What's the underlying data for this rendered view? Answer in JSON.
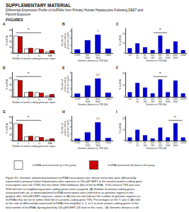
{
  "title": "SUPPLEMENTARY MATERIAL",
  "subtitle": "Differential Expression Profile of lncRNAs from Primary Human Hepatocytes Following DEET and\nFipronil Exposure",
  "annotations": [
    {
      "text": "FIGURES"
    }
  ],
  "caption": "Figure S1. Genomic relationship between lncRNA transcription sites whose transcripts were differentially\nexpressed in primary human hepatocytes after exposure to 100 μM DEET to the nearest protein-coding gene\ntranscription start site (TSS) that lies within 3000 kilobases (kb) of the lncRNA.  If the nearest TSS was over\n3000 kb then no neighboring protein-coding genes were assigned. (A) Number of protein-coding genes\nassociated with up- or downregulated lncRNA transcription sites (referred to as genomic regions in the\ngraphs) after 100 μM DEET exposure: values in (A) that are red indicate the number of genomic regions (i.e.,\nlncRNAs) that do not lie within 3000 kb of a protein-coding gene TSS. Percentages on the Y axis in (A) refer\nto the ratio of differentially expressed lncRNAs that neighbor 0, 1, or 2 or more protein-coding genes to the\ntotal number of lncRNAs dysregulated by 100 μM DEET (26 total in this case).  (B) Genomic distance in kb",
  "chart_data": [
    {
      "type": "bar",
      "title": "A",
      "categories": [
        "0",
        "1",
        "2+",
        "N/A"
      ],
      "series": [
        {
          "name": "lncRNA associated with up in this group",
          "color": "#ffffff",
          "values": [
            60,
            15,
            15,
            5
          ]
        },
        {
          "name": "lncRNA associated with down in this group",
          "color": "#cc0000",
          "values": [
            58,
            17,
            13,
            9
          ]
        }
      ],
      "xlabel": "Number of protein-coding genes per region",
      "ylabel": "% lncRNA",
      "ylim": [
        0,
        87
      ],
      "yticks": [
        0,
        20,
        40,
        60,
        80
      ],
      "grid": false,
      "legend": "bottom",
      "annotations": [
        {
          "text": "*",
          "x": 1
        }
      ]
    },
    {
      "type": "bar",
      "title": "B",
      "categories": [
        "0-500",
        "500-\n1500",
        "1500-\n3000",
        ">3000"
      ],
      "values": [
        1.0,
        3.5,
        5.0,
        1.2
      ],
      "value_labels": [
        null,
        null,
        "5",
        null
      ],
      "color": "#0000cc",
      "xlabel": "Genomic distance to TSS (kb)",
      "ylabel": "Number of\nprotein-coding\ngenes per region",
      "ylim": [
        0,
        6.75
      ],
      "yticks": [
        0,
        2,
        4,
        6
      ],
      "grid": false
    },
    {
      "type": "bar",
      "title": "C",
      "categories": [
        "<10",
        "10-\n50",
        "50-\n100",
        "100-\n200",
        "200-\n500",
        "500-\n1000",
        "1000-\n2000",
        ">2000"
      ],
      "values": [
        5,
        10,
        6,
        3,
        18,
        4,
        12,
        3
      ],
      "color": "#0000cc",
      "xlabel": "Distance to TSS (kb)",
      "ylabel": "% lncRNA",
      "ylim": [
        0,
        25.56
      ],
      "yticks": [
        0,
        10,
        20
      ],
      "grid": false,
      "annotations": [
        {
          "text": "*",
          "x": 4
        }
      ]
    },
    {
      "type": "bar",
      "title": "D",
      "categories": [
        "0",
        "1",
        "2+",
        "N/A"
      ],
      "series": [
        {
          "color": "#ffffff",
          "values": [
            55,
            14,
            14,
            4
          ]
        },
        {
          "color": "#cc0000",
          "values": [
            53,
            16,
            12,
            8
          ]
        }
      ],
      "xlabel": "Number of protein-coding genes per region",
      "ylabel": "% lncRNA",
      "ylim": [
        0,
        79.75
      ],
      "yticks": [
        0,
        20,
        40,
        60
      ],
      "grid": false,
      "annotations": [
        {
          "text": "*",
          "x": 1
        }
      ]
    },
    {
      "type": "bar",
      "title": "E",
      "categories": [
        "0-500",
        "500-\n1500",
        "1500-\n3000",
        ">3000"
      ],
      "values": [
        0.8,
        2.8,
        4.5,
        1.0
      ],
      "value_labels": [
        null,
        null,
        "4.5",
        null
      ],
      "color": "#0000cc",
      "xlabel": "Genomic distance to TSS (kb)",
      "ylabel": "Number of\nprotein-coding\ngenes per region",
      "ylim": [
        0,
        6.075
      ],
      "yticks": [
        0,
        2,
        4,
        6
      ],
      "grid": false
    },
    {
      "type": "bar",
      "title": "F",
      "categories": [
        "<10",
        "10-\n50",
        "50-\n100",
        "100-\n200",
        "200-\n500",
        "500-\n1000",
        "1000-\n2000",
        ">2000"
      ],
      "values": [
        4,
        12,
        8,
        3,
        15,
        4,
        14,
        3
      ],
      "color": "#0000cc",
      "xlabel": "Distance to TSS (kb)",
      "ylabel": "% lncRNA",
      "ylim": [
        0,
        21.3
      ],
      "yticks": [
        0,
        10,
        20
      ],
      "grid": false,
      "annotations": [
        {
          "text": "*",
          "x": 4
        }
      ]
    },
    {
      "type": "bar",
      "title": "G",
      "categories": [
        "0",
        "1",
        "2+",
        "N/A"
      ],
      "series": [
        {
          "color": "#ffffff",
          "values": [
            58,
            13,
            13,
            3
          ]
        },
        {
          "color": "#cc0000",
          "values": [
            56,
            15,
            11,
            7
          ]
        }
      ],
      "xlabel": "Number of protein-coding genes per region",
      "ylabel": "% lncRNA",
      "ylim": [
        0,
        84.1
      ],
      "yticks": [
        0,
        20,
        40,
        60,
        80
      ],
      "grid": false,
      "annotations": [
        {
          "text": "*",
          "x": 1
        }
      ]
    },
    {
      "type": "bar",
      "title": "H",
      "categories": [
        "0-500",
        "500-\n1500",
        "1500-\n3000",
        ">3000"
      ],
      "values": [
        0.6,
        2.5,
        5.5,
        0.8
      ],
      "value_labels": [
        null,
        null,
        "5.5",
        null
      ],
      "color": "#0000cc",
      "xlabel": "Genomic distance to TSS (kb)",
      "ylabel": "Number of\nprotein-coding\ngenes per region",
      "ylim": [
        0,
        7.425
      ],
      "yticks": [
        0,
        2,
        4,
        6
      ],
      "grid": false
    },
    {
      "type": "bar",
      "title": "I",
      "categories": [
        "<10",
        "10-\n50",
        "50-\n100",
        "100-\n200",
        "200-\n500",
        "500-\n1000",
        "1000-\n2000",
        ">2000"
      ],
      "values": [
        3,
        10,
        5,
        2,
        12,
        3,
        16,
        3
      ],
      "color": "#0000cc",
      "xlabel": "Distance to TSS (kb)",
      "ylabel": "% lncRNA",
      "ylim": [
        0,
        22.72
      ],
      "yticks": [
        0,
        10,
        20
      ],
      "grid": false,
      "annotations": [
        {
          "text": "*",
          "x": 6
        }
      ]
    }
  ]
}
